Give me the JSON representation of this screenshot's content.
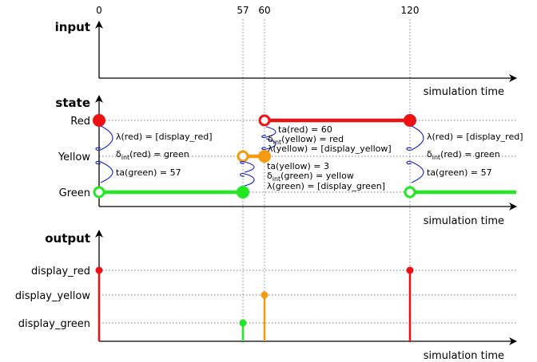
{
  "time_ticks": [
    "0",
    "57",
    "60",
    "120"
  ],
  "sections": {
    "input": {
      "title": "input",
      "axis_label": "simulation time"
    },
    "state": {
      "title": "state",
      "axis_label": "simulation time",
      "rows": [
        "Red",
        "Yellow",
        "Green"
      ]
    },
    "output": {
      "title": "output",
      "axis_label": "simulation time",
      "rows": [
        "display_red",
        "display_yellow",
        "display_green"
      ]
    }
  },
  "colors": {
    "red": "#ee1111",
    "yellow": "#f49b10",
    "green": "#22e822",
    "transition": "#1020c8"
  },
  "annotations": {
    "t0": {
      "line1": "λ(red) = [display_red]",
      "line2_pre": "δ",
      "line2_sub": "int",
      "line2_post": "(red) = green",
      "line3": "ta(green) = 57"
    },
    "t57": {
      "line1": "ta(yellow) = 3",
      "line2_pre": "δ",
      "line2_sub": "int",
      "line2_post": "(green) = yellow",
      "line3": "λ(green) = [display_green]"
    },
    "t60": {
      "line1": "ta(red) = 60",
      "line2_pre": "δ",
      "line2_sub": "int",
      "line2_post": "(yellow) = red",
      "line3": "λ(yellow) = [display_yellow]"
    },
    "t120": {
      "line1": "λ(red) = [display_red]",
      "line2_pre": "δ",
      "line2_sub": "int",
      "line2_post": "(red) = green",
      "line3": "ta(green) = 57"
    }
  }
}
